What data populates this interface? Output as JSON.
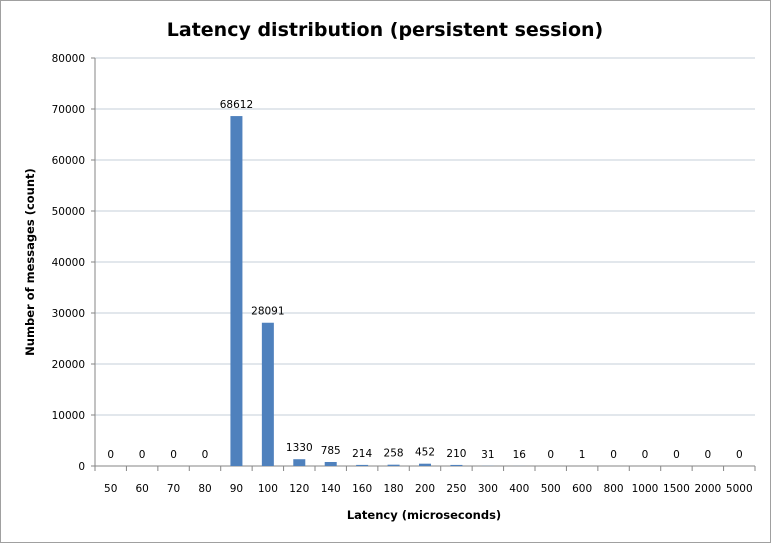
{
  "chart_data": {
    "type": "bar",
    "title": "Latency distribution (persistent session)",
    "xlabel": "Latency (microseconds)",
    "ylabel": "Number of messages (count)",
    "categories": [
      "50",
      "60",
      "70",
      "80",
      "90",
      "100",
      "120",
      "140",
      "160",
      "180",
      "200",
      "250",
      "300",
      "400",
      "500",
      "600",
      "800",
      "1000",
      "1500",
      "2000",
      "5000"
    ],
    "values": [
      0,
      0,
      0,
      0,
      68612,
      28091,
      1330,
      785,
      214,
      258,
      452,
      210,
      31,
      16,
      0,
      1,
      0,
      0,
      0,
      0,
      0
    ],
    "data_labels": [
      "0",
      "0",
      "0",
      "0",
      "68612",
      "28091",
      "1330",
      "785",
      "214",
      "258",
      "452",
      "210",
      "31",
      "16",
      "0",
      "1",
      "0",
      "0",
      "0",
      "0",
      "0"
    ],
    "ylim": [
      0,
      80000
    ],
    "yticks": [
      "0",
      "10000",
      "20000",
      "30000",
      "40000",
      "50000",
      "60000",
      "70000",
      "80000"
    ],
    "grid": true,
    "legend": "none",
    "bar_color": "#4f81bd",
    "grid_color": "#c6cfd9"
  }
}
